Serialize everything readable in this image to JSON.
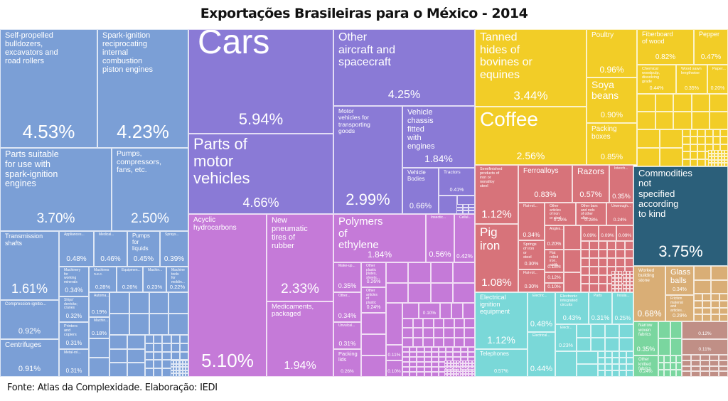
{
  "title": "Exportações Brasileiras para o México - 2014",
  "source": "Fonte: Atlas da Complexidade. Elaboração: IEDI",
  "colors": {
    "machinery": "#7b9fd6",
    "transport": "#8a7ad6",
    "chemicals": "#c57ad8",
    "agriculture": "#f2cd27",
    "metals": "#d7737a",
    "electronics": "#7ad8d8",
    "other": "#2b5f7a",
    "stone_glass": "#d9ae76",
    "textiles": "#7ad69f",
    "misc_brown": "#c08f86"
  },
  "chart_data": {
    "type": "treemap",
    "title": "Exportações Brasileiras para o México - 2014",
    "unit": "% of total exports",
    "items": [
      {
        "name": "Self-propelled bulldozers, excavators and road rollers",
        "value": 4.53,
        "group": "machinery"
      },
      {
        "name": "Spark-ignition reciprocating internal combustion piston engines",
        "value": 4.23,
        "group": "machinery"
      },
      {
        "name": "Parts suitable for use with spark-ignition engines",
        "value": 3.7,
        "group": "machinery"
      },
      {
        "name": "Pumps, compressors, fans, etc.",
        "value": 2.5,
        "group": "machinery"
      },
      {
        "name": "Transmission shafts",
        "value": 1.61,
        "group": "machinery"
      },
      {
        "name": "Compression-ignition...",
        "value": 0.92,
        "group": "machinery"
      },
      {
        "name": "Centrifuges",
        "value": 0.91,
        "group": "machinery"
      },
      {
        "name": "Appliances...",
        "value": 0.48,
        "group": "machinery"
      },
      {
        "name": "Medical...",
        "value": 0.46,
        "group": "machinery"
      },
      {
        "name": "Pumps for liquids",
        "value": 0.45,
        "group": "machinery"
      },
      {
        "name": "Sprays...",
        "value": 0.39,
        "group": "machinery"
      },
      {
        "name": "Machinery for working minerals",
        "value": 0.34,
        "group": "machinery"
      },
      {
        "name": "Ships' derricks; cranes",
        "value": 0.32,
        "group": "machinery"
      },
      {
        "name": "Printers and copiers",
        "value": 0.31,
        "group": "machinery"
      },
      {
        "name": "Metal-rol...",
        "value": 0.31,
        "group": "machinery"
      },
      {
        "name": "Machines n.e.c.",
        "value": 0.28,
        "group": "machinery"
      },
      {
        "name": "Equipmen...",
        "value": 0.26,
        "group": "machinery"
      },
      {
        "name": "Machin...",
        "value": 0.23,
        "group": "machinery"
      },
      {
        "name": "Machine tools for moldin...",
        "value": 0.22,
        "group": "machinery"
      },
      {
        "name": "Automa...",
        "value": 0.19,
        "group": "machinery"
      },
      {
        "name": "Machin...",
        "value": 0.18,
        "group": "machinery"
      },
      {
        "name": "Cars",
        "value": 5.94,
        "group": "transport"
      },
      {
        "name": "Parts of motor vehicles",
        "value": 4.66,
        "group": "transport"
      },
      {
        "name": "Other aircraft and spacecraft",
        "value": 4.25,
        "group": "transport"
      },
      {
        "name": "Motor vehicles for transporting goods",
        "value": 2.99,
        "group": "transport"
      },
      {
        "name": "Vehicle chassis fitted with engines",
        "value": 1.84,
        "group": "transport"
      },
      {
        "name": "Vehicle Bodies",
        "value": 0.66,
        "group": "transport"
      },
      {
        "name": "Tractors",
        "value": 0.41,
        "group": "transport"
      },
      {
        "name": "Acyclic hydrocarbons",
        "value": 5.1,
        "group": "chemicals"
      },
      {
        "name": "New pneumatic tires of rubber",
        "value": 2.33,
        "group": "chemicals"
      },
      {
        "name": "Medicaments, packaged",
        "value": 1.94,
        "group": "chemicals"
      },
      {
        "name": "Polymers of ethylene",
        "value": 1.84,
        "group": "chemicals"
      },
      {
        "name": "Insectic...",
        "value": 0.56,
        "group": "chemicals"
      },
      {
        "name": "Cellul...",
        "value": 0.42,
        "group": "chemicals"
      },
      {
        "name": "Make-up...",
        "value": 0.35,
        "group": "chemicals"
      },
      {
        "name": "Other...",
        "value": 0.34,
        "group": "chemicals"
      },
      {
        "name": "Unvulcal...",
        "value": 0.31,
        "group": "chemicals"
      },
      {
        "name": "Packing lids",
        "value": 0.26,
        "group": "chemicals"
      },
      {
        "name": "Other plastic plates, sheets...",
        "value": 0.26,
        "group": "chemicals"
      },
      {
        "name": "Other articles of plastic",
        "value": 0.24,
        "group": "chemicals"
      },
      {
        "name": "Tanned hides of bovines or equines",
        "value": 3.44,
        "group": "agriculture"
      },
      {
        "name": "Coffee",
        "value": 2.56,
        "group": "agriculture"
      },
      {
        "name": "Poultry",
        "value": 0.96,
        "group": "agriculture"
      },
      {
        "name": "Soya beans",
        "value": 0.9,
        "group": "agriculture"
      },
      {
        "name": "Packing boxes",
        "value": 0.85,
        "group": "agriculture"
      },
      {
        "name": "Fiberboard of wood",
        "value": 0.82,
        "group": "agriculture"
      },
      {
        "name": "Pepper",
        "value": 0.47,
        "group": "agriculture"
      },
      {
        "name": "Chemical woodpulp, dissolving grade",
        "value": 0.44,
        "group": "agriculture"
      },
      {
        "name": "Wood sawn lengthwise",
        "value": 0.35,
        "group": "agriculture"
      },
      {
        "name": "Paper...",
        "value": 0.2,
        "group": "agriculture"
      },
      {
        "name": "Semifinished products of iron or nonalloy steel",
        "value": 1.12,
        "group": "metals"
      },
      {
        "name": "Pig iron",
        "value": 1.08,
        "group": "metals"
      },
      {
        "name": "Ferroalloys",
        "value": 0.83,
        "group": "metals"
      },
      {
        "name": "Razors",
        "value": 0.57,
        "group": "metals"
      },
      {
        "name": "Interch...",
        "value": 0.35,
        "group": "metals"
      },
      {
        "name": "Flat-rol...",
        "value": 0.34,
        "group": "metals"
      },
      {
        "name": "Springs of iron or steel",
        "value": 0.3,
        "group": "metals"
      },
      {
        "name": "Flat-rol...",
        "value": 0.3,
        "group": "metals"
      },
      {
        "name": "Other articles of iron or steel",
        "value": 0.29,
        "group": "metals"
      },
      {
        "name": "Other bars and rods of other alloy...",
        "value": 0.28,
        "group": "metals"
      },
      {
        "name": "Unwrough...",
        "value": 0.24,
        "group": "metals"
      },
      {
        "name": "Angles...",
        "value": 0.2,
        "group": "metals"
      },
      {
        "name": "Flat rolled iron, width...",
        "value": 0.18,
        "group": "metals"
      },
      {
        "name": "Electrical ignition equipment",
        "value": 1.12,
        "group": "electronics"
      },
      {
        "name": "Telephones",
        "value": 0.57,
        "group": "electronics"
      },
      {
        "name": "Electric...",
        "value": 0.48,
        "group": "electronics"
      },
      {
        "name": "Electrical...",
        "value": 0.44,
        "group": "electronics"
      },
      {
        "name": "Electronic integrated circuits",
        "value": 0.43,
        "group": "electronics"
      },
      {
        "name": "Parts",
        "value": 0.31,
        "group": "electronics"
      },
      {
        "name": "Insula...",
        "value": 0.25,
        "group": "electronics"
      },
      {
        "name": "Electr...",
        "value": 0.23,
        "group": "electronics"
      },
      {
        "name": "Commodities not specified according to kind",
        "value": 3.75,
        "group": "other"
      },
      {
        "name": "Worked building stone",
        "value": 0.68,
        "group": "stone_glass"
      },
      {
        "name": "Glass balls",
        "value": 0.34,
        "group": "stone_glass"
      },
      {
        "name": "Friction material and articles...",
        "value": 0.29,
        "group": "stone_glass"
      },
      {
        "name": "Narrow woven fabrics",
        "value": 0.35,
        "group": "textiles"
      },
      {
        "name": "Other knitted fabrics",
        "value": 0.24,
        "group": "textiles"
      }
    ]
  }
}
